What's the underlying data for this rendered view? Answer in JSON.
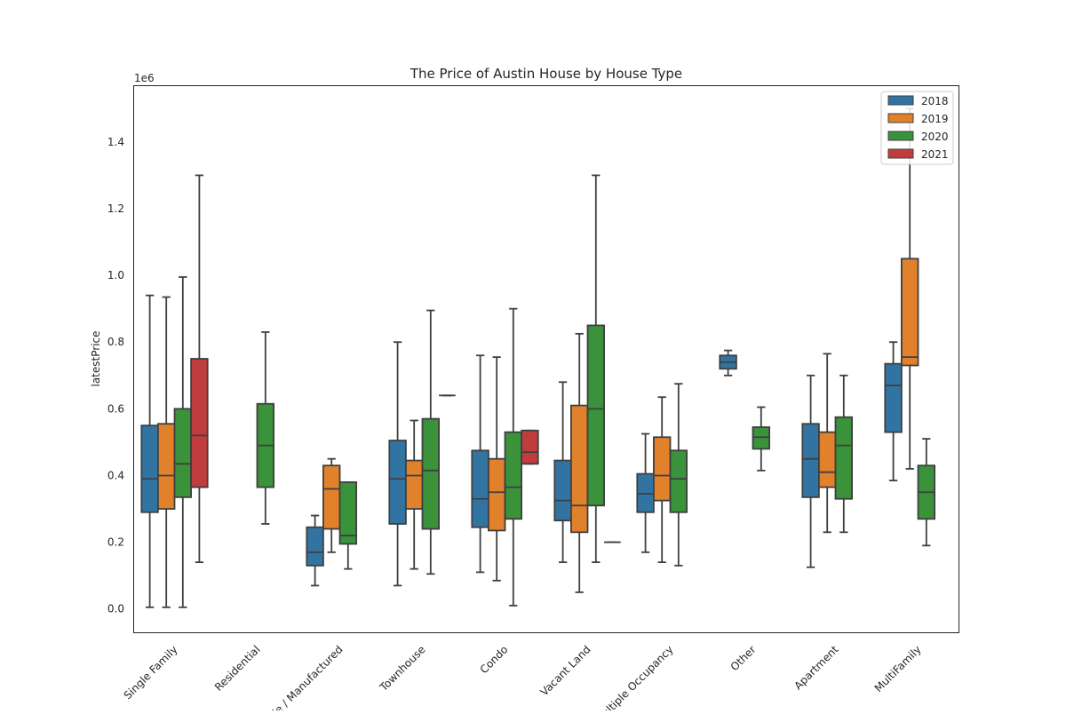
{
  "chart_data": {
    "type": "box",
    "title": "The Price of Austin House by House Type",
    "xlabel": "",
    "ylabel": "latestPrice",
    "y_scale_label": "1e6",
    "ylim": [
      -0.07,
      1.57
    ],
    "yticks": [
      0.0,
      0.2,
      0.4,
      0.6,
      0.8,
      1.0,
      1.2,
      1.4
    ],
    "ytick_labels": [
      "0.0",
      "0.2",
      "0.4",
      "0.6",
      "0.8",
      "1.0",
      "1.2",
      "1.4"
    ],
    "grid": false,
    "legend_position": "top-right",
    "categories": [
      "Single Family",
      "Residential",
      "Mobile / Manufactured",
      "Townhouse",
      "Condo",
      "Vacant Land",
      "Multiple Occupancy",
      "Other",
      "Apartment",
      "MultiFamily"
    ],
    "series": [
      {
        "name": "2018",
        "color": "#3274a1",
        "boxes": [
          {
            "whislo": 0.005,
            "q1": 0.29,
            "med": 0.39,
            "q3": 0.55,
            "whishi": 0.94
          },
          null,
          {
            "whislo": 0.07,
            "q1": 0.13,
            "med": 0.17,
            "q3": 0.245,
            "whishi": 0.28
          },
          {
            "whislo": 0.07,
            "q1": 0.255,
            "med": 0.39,
            "q3": 0.505,
            "whishi": 0.8
          },
          {
            "whislo": 0.11,
            "q1": 0.245,
            "med": 0.33,
            "q3": 0.475,
            "whishi": 0.76
          },
          {
            "whislo": 0.14,
            "q1": 0.265,
            "med": 0.325,
            "q3": 0.445,
            "whishi": 0.68
          },
          {
            "whislo": 0.17,
            "q1": 0.29,
            "med": 0.345,
            "q3": 0.405,
            "whishi": 0.525
          },
          {
            "whislo": 0.7,
            "q1": 0.72,
            "med": 0.74,
            "q3": 0.76,
            "whishi": 0.775
          },
          {
            "whislo": 0.125,
            "q1": 0.335,
            "med": 0.45,
            "q3": 0.555,
            "whishi": 0.7
          },
          {
            "whislo": 0.385,
            "q1": 0.53,
            "med": 0.67,
            "q3": 0.735,
            "whishi": 0.8
          }
        ]
      },
      {
        "name": "2019",
        "color": "#e1812c",
        "boxes": [
          {
            "whislo": 0.005,
            "q1": 0.3,
            "med": 0.4,
            "q3": 0.555,
            "whishi": 0.935
          },
          null,
          {
            "whislo": 0.17,
            "q1": 0.24,
            "med": 0.36,
            "q3": 0.43,
            "whishi": 0.45
          },
          {
            "whislo": 0.12,
            "q1": 0.3,
            "med": 0.4,
            "q3": 0.445,
            "whishi": 0.565
          },
          {
            "whislo": 0.085,
            "q1": 0.235,
            "med": 0.35,
            "q3": 0.45,
            "whishi": 0.755
          },
          {
            "whislo": 0.05,
            "q1": 0.23,
            "med": 0.31,
            "q3": 0.61,
            "whishi": 0.825
          },
          {
            "whislo": 0.14,
            "q1": 0.325,
            "med": 0.4,
            "q3": 0.515,
            "whishi": 0.635
          },
          null,
          {
            "whislo": 0.23,
            "q1": 0.365,
            "med": 0.41,
            "q3": 0.53,
            "whishi": 0.765
          },
          {
            "whislo": 0.42,
            "q1": 0.73,
            "med": 0.755,
            "q3": 1.05,
            "whishi": 1.5
          }
        ]
      },
      {
        "name": "2020",
        "color": "#3a923a",
        "boxes": [
          {
            "whislo": 0.005,
            "q1": 0.335,
            "med": 0.435,
            "q3": 0.6,
            "whishi": 0.995
          },
          {
            "whislo": 0.255,
            "q1": 0.365,
            "med": 0.49,
            "q3": 0.615,
            "whishi": 0.83
          },
          {
            "whislo": 0.12,
            "q1": 0.195,
            "med": 0.22,
            "q3": 0.38,
            "whishi": 0.38
          },
          {
            "whislo": 0.105,
            "q1": 0.24,
            "med": 0.415,
            "q3": 0.57,
            "whishi": 0.895
          },
          {
            "whislo": 0.01,
            "q1": 0.27,
            "med": 0.365,
            "q3": 0.53,
            "whishi": 0.9
          },
          {
            "whislo": 0.14,
            "q1": 0.31,
            "med": 0.6,
            "q3": 0.85,
            "whishi": 1.3
          },
          {
            "whislo": 0.13,
            "q1": 0.29,
            "med": 0.39,
            "q3": 0.475,
            "whishi": 0.675
          },
          {
            "whislo": 0.415,
            "q1": 0.48,
            "med": 0.515,
            "q3": 0.545,
            "whishi": 0.605
          },
          {
            "whislo": 0.23,
            "q1": 0.33,
            "med": 0.49,
            "q3": 0.575,
            "whishi": 0.7
          },
          {
            "whislo": 0.19,
            "q1": 0.27,
            "med": 0.35,
            "q3": 0.43,
            "whishi": 0.51
          }
        ]
      },
      {
        "name": "2021",
        "color": "#c03d3e",
        "boxes": [
          {
            "whislo": 0.14,
            "q1": 0.365,
            "med": 0.52,
            "q3": 0.75,
            "whishi": 1.3
          },
          null,
          null,
          {
            "whislo": 0.64,
            "q1": 0.64,
            "med": 0.64,
            "q3": 0.64,
            "whishi": 0.64
          },
          {
            "whislo": 0.435,
            "q1": 0.435,
            "med": 0.47,
            "q3": 0.535,
            "whishi": 0.535
          },
          {
            "whislo": 0.2,
            "q1": 0.2,
            "med": 0.2,
            "q3": 0.2,
            "whishi": 0.2
          },
          null,
          null,
          null,
          null
        ]
      }
    ]
  }
}
